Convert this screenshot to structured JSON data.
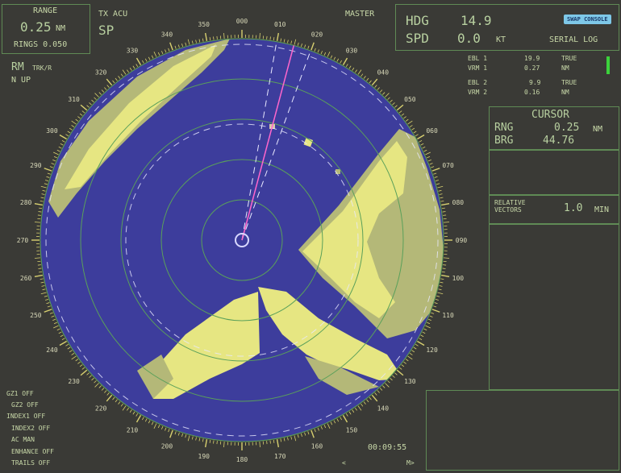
{
  "range": {
    "title": "RANGE",
    "value": "0.25",
    "unit": "NM",
    "rings": "RINGS 0.050"
  },
  "mode": {
    "tx": "TX ACU",
    "sp": "SP"
  },
  "master": "MASTER",
  "heading": {
    "hdg_label": "HDG",
    "hdg_value": "14.9",
    "spd_label": "SPD",
    "spd_value": "0.0",
    "spd_unit": "KT",
    "source": "SERIAL LOG"
  },
  "swap_button": "SWAP CONSOLE",
  "motion": {
    "rm": "RM",
    "trk": "TRK/R",
    "nup": "N UP"
  },
  "ebl_vrm": [
    {
      "label": "EBL 1",
      "value": "19.9",
      "unit": "TRUE"
    },
    {
      "label": "VRM 1",
      "value": "0.27",
      "unit": "NM"
    },
    {
      "label": "EBL 2",
      "value": "9.9",
      "unit": "TRUE"
    },
    {
      "label": "VRM 2",
      "value": "0.16",
      "unit": "NM"
    }
  ],
  "cursor": {
    "title": "CURSOR",
    "rng_label": "RNG",
    "rng_value": "0.25",
    "rng_unit": "NM",
    "brg_label": "BRG",
    "brg_value": "44.76"
  },
  "vectors": {
    "line1": "RELATIVE",
    "line2": "VECTORS",
    "value": "1.0",
    "unit": "MIN"
  },
  "status": [
    "GZ1 OFF",
    "GZ2 OFF",
    "INDEX1 OFF",
    "INDEX2 OFF",
    "AC MAN",
    "ENHANCE OFF",
    "TRAILS OFF"
  ],
  "clock": "00:09:55",
  "nav": {
    "left": "<",
    "right": "M>"
  },
  "bearing_labels": [
    "000",
    "010",
    "020",
    "030",
    "040",
    "050",
    "060",
    "070",
    "080",
    "090",
    "100",
    "110",
    "120",
    "130",
    "140",
    "150",
    "160",
    "170",
    "180",
    "190",
    "200",
    "210",
    "220",
    "230",
    "240",
    "250",
    "260",
    "270",
    "280",
    "290",
    "300",
    "310",
    "320",
    "330",
    "340",
    "350"
  ],
  "colors": {
    "radar_bg": "#3d3d9c",
    "echo": "#e6e682",
    "echo_dim": "#b4b878",
    "ring": "#5aa05a",
    "heading_line": "#ff66cc",
    "ebl": "#e8e8ff"
  },
  "ebl_bearings_deg": [
    19.9,
    9.9
  ],
  "vrm_ranges_nm": [
    0.27,
    0.16
  ],
  "ring_interval_nm": 0.05,
  "display_range_nm": 0.25
}
